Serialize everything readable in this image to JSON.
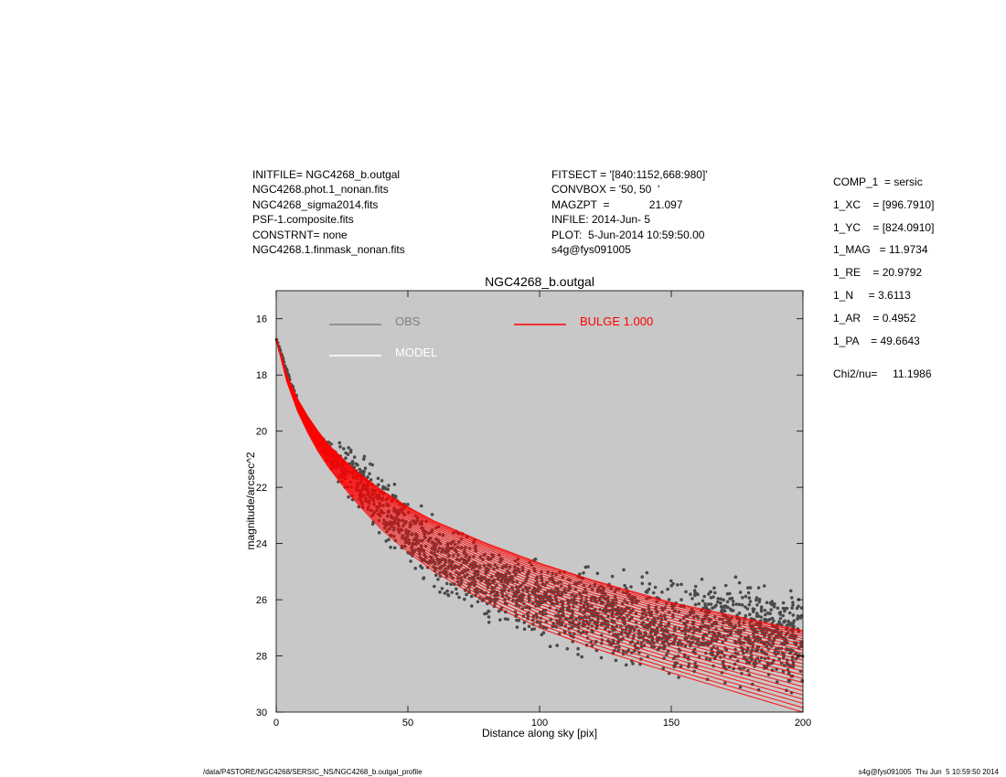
{
  "header": {
    "left": [
      "INITFILE= NGC4268_b.outgal",
      "NGC4268.phot.1_nonan.fits",
      "NGC4268_sigma2014.fits",
      "PSF-1.composite.fits",
      "CONSTRNT= none",
      "NGC4268.1.finmask_nonan.fits"
    ],
    "middle": [
      "FITSECT = '[840:1152,668:980]'",
      "CONVBOX = '50, 50  '",
      "MAGZPT  =             21.097",
      "INFILE: 2014-Jun- 5",
      "PLOT:  5-Jun-2014 10:59:50.00",
      "s4g@fys091005"
    ]
  },
  "params": [
    "COMP_1  = sersic",
    "1_XC    = [996.7910]",
    "1_YC    = [824.0910]",
    "1_MAG   = 11.9734",
    "1_RE    = 20.9792",
    "1_N     = 3.6113",
    "1_AR    = 0.4952",
    "1_PA    = 49.6643"
  ],
  "chi2": "Chi2/nu=     11.1986",
  "footer": {
    "left": "/data/P4STORE/NGC4268/SERSIC_NS/NGC4268_b.outgal_profile",
    "right": "s4g@fys091005  Thu Jun  5 10:59:50 2014"
  },
  "colors": {
    "plot_background": "#c8c8c8",
    "obs": "#4a4a4a",
    "model": "#ffffff",
    "bulge": "#ff0000",
    "obs_legend": "#808080"
  },
  "chart_data": {
    "type": "scatter",
    "title": "NGC4268_b.outgal",
    "xlabel": "Distance along sky [pix]",
    "ylabel": "magnitude/arcsec^2",
    "xlim": [
      0,
      200
    ],
    "ylim": [
      30,
      15
    ],
    "y_inverted": true,
    "xticks": [
      "0",
      "50",
      "100",
      "150",
      "200"
    ],
    "yticks": [
      "16",
      "18",
      "20",
      "22",
      "24",
      "26",
      "28",
      "30"
    ],
    "legend": [
      {
        "name": "OBS",
        "color": "#808080",
        "position": "top-left"
      },
      {
        "name": "MODEL",
        "color": "#ffffff",
        "position": "top-left"
      },
      {
        "name": "BULGE  1.000",
        "color": "#ff0000",
        "position": "top-center"
      }
    ],
    "series": [
      {
        "name": "OBS",
        "kind": "point cloud",
        "upper_envelope": {
          "x": [
            0,
            5,
            10,
            15,
            20,
            30,
            40,
            50,
            60,
            80,
            100,
            120,
            150,
            180,
            200
          ],
          "y": [
            16.7,
            18.0,
            19.3,
            20.0,
            20.0,
            20.4,
            21.0,
            21.9,
            22.7,
            23.6,
            24.1,
            24.6,
            24.8,
            24.9,
            25.0
          ]
        },
        "lower_envelope": {
          "x": [
            0,
            5,
            10,
            20,
            30,
            40,
            50,
            60,
            80,
            100,
            120,
            150,
            180,
            200
          ],
          "y": [
            16.7,
            18.3,
            19.6,
            21.5,
            23.0,
            24.2,
            25.2,
            26.0,
            27.0,
            27.8,
            28.4,
            29.2,
            29.6,
            29.8
          ]
        }
      },
      {
        "name": "BULGE  1.000",
        "kind": "model band",
        "major_axis": {
          "x": [
            0,
            5,
            10,
            15,
            20,
            30,
            40,
            50,
            60,
            80,
            100,
            120,
            150,
            175,
            200
          ],
          "y": [
            16.7,
            18.3,
            19.2,
            19.9,
            20.5,
            21.4,
            22.1,
            22.7,
            23.2,
            24.0,
            24.7,
            25.3,
            26.1,
            26.6,
            27.1
          ]
        },
        "minor_axis": {
          "x": [
            0,
            5,
            10,
            15,
            20,
            30,
            40,
            50,
            60,
            80,
            100,
            120,
            150,
            175,
            200
          ],
          "y": [
            16.7,
            18.6,
            19.7,
            20.6,
            21.3,
            22.5,
            23.5,
            24.3,
            25.0,
            26.1,
            27.0,
            27.7,
            28.6,
            29.3,
            30.0
          ]
        }
      }
    ]
  }
}
